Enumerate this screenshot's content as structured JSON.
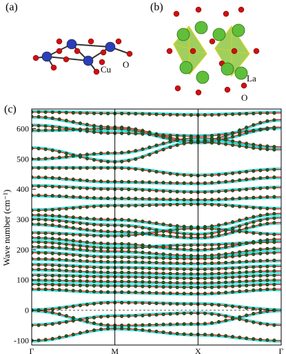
{
  "figure": {
    "panel_a_label": "(a)",
    "panel_b_label": "(b)",
    "panel_c_label": "(c)",
    "atom_labels_a": {
      "cu": "Cu",
      "o": "O"
    },
    "atom_labels_b": {
      "la": "La",
      "o": "O"
    },
    "colors": {
      "copper": "#2a3fb8",
      "oxygen": "#cc1111",
      "lanthanum": "#5fbf3a",
      "octahedron": "#7fbf2a",
      "red_curve": "#cc1111",
      "cyan_curve": "#00d8d8",
      "dot": "#1f5a1f"
    }
  },
  "chart_data": {
    "type": "line",
    "title": "",
    "xlabel": "",
    "ylabel": "Wave number (cm⁻¹)",
    "ylim": [
      -115,
      665
    ],
    "yticks": [
      -100,
      0,
      100,
      200,
      300,
      400,
      500,
      600
    ],
    "x_high_symmetry": [
      "Γ",
      "M",
      "X",
      "Γ"
    ],
    "x_positions": [
      0,
      1,
      2,
      3
    ],
    "series": [
      {
        "values": [
          655,
          650,
          645,
          652
        ]
      },
      {
        "values": [
          640,
          605,
          560,
          630
        ]
      },
      {
        "values": [
          610,
          585,
          575,
          600
        ]
      },
      {
        "values": [
          595,
          600,
          555,
          605
        ]
      },
      {
        "values": [
          535,
          490,
          555,
          530
        ]
      },
      {
        "values": [
          500,
          520,
          570,
          540
        ]
      },
      {
        "values": [
          470,
          470,
          445,
          465
        ]
      },
      {
        "values": [
          440,
          425,
          420,
          440
        ]
      },
      {
        "values": [
          410,
          400,
          390,
          405
        ]
      },
      {
        "values": [
          380,
          370,
          365,
          375
        ]
      },
      {
        "values": [
          330,
          345,
          350,
          335
        ]
      },
      {
        "values": [
          315,
          300,
          275,
          320
        ]
      },
      {
        "values": [
          300,
          280,
          250,
          305
        ]
      },
      {
        "values": [
          285,
          260,
          240,
          290
        ]
      },
      {
        "values": [
          255,
          245,
          270,
          250
        ]
      },
      {
        "values": [
          240,
          220,
          200,
          235
        ]
      },
      {
        "values": [
          225,
          205,
          215,
          225
        ]
      },
      {
        "values": [
          210,
          195,
          180,
          205
        ]
      },
      {
        "values": [
          190,
          175,
          170,
          190
        ]
      },
      {
        "values": [
          170,
          160,
          155,
          165
        ]
      },
      {
        "values": [
          150,
          140,
          135,
          145
        ]
      },
      {
        "values": [
          135,
          125,
          120,
          130
        ]
      },
      {
        "values": [
          115,
          110,
          105,
          115
        ]
      },
      {
        "values": [
          100,
          95,
          90,
          100
        ]
      },
      {
        "values": [
          85,
          80,
          75,
          85
        ]
      },
      {
        "values": [
          70,
          60,
          55,
          70
        ]
      },
      {
        "values": [
          0,
          25,
          20,
          0
        ]
      },
      {
        "values": [
          0,
          -50,
          -45,
          0
        ]
      },
      {
        "values": [
          -50,
          -20,
          -10,
          -50
        ]
      },
      {
        "values": [
          -100,
          -60,
          -80,
          -100
        ]
      }
    ]
  }
}
